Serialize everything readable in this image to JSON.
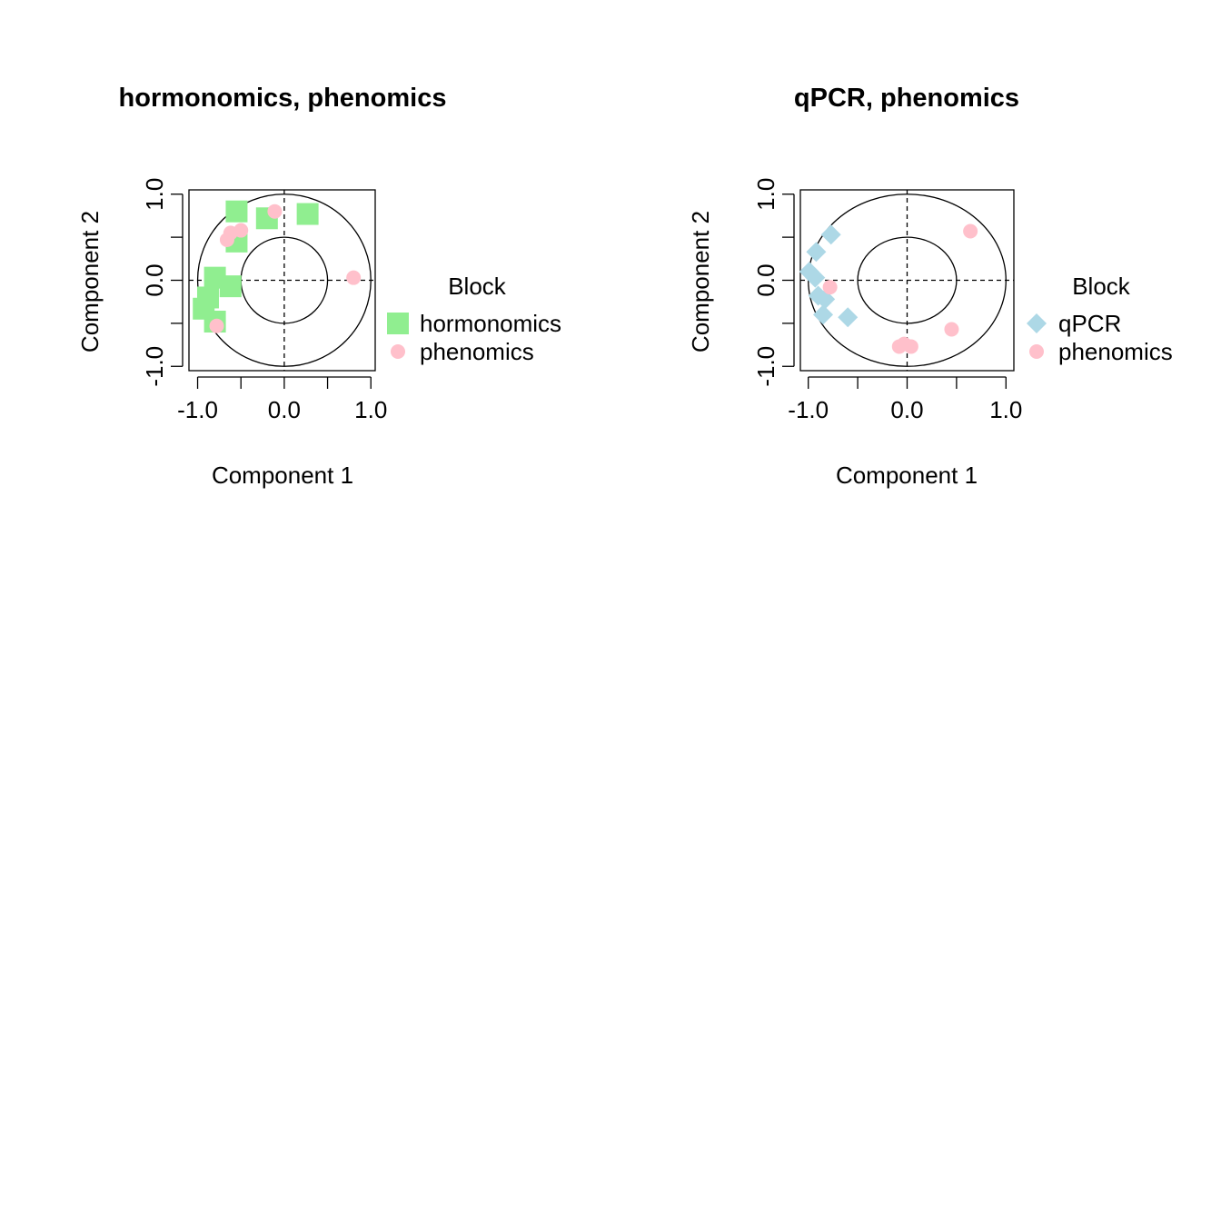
{
  "chart_data": [
    {
      "type": "scatter",
      "title": "hormonomics, phenomics",
      "xlabel": "Component  1",
      "ylabel": "Component  2",
      "xticks": [
        "-1.0",
        "0.0",
        "1.0"
      ],
      "yticks": [
        "-1.0",
        "0.0",
        "1.0"
      ],
      "xlim": [
        -1.1,
        1.05
      ],
      "ylim": [
        -1.05,
        1.05
      ],
      "circles": [
        0.5,
        1.0
      ],
      "legend": {
        "title": "Block",
        "placement": "right"
      },
      "series": [
        {
          "name": "hormonomics",
          "color": "#90EE90",
          "marker": "square",
          "points": [
            [
              -0.55,
              0.8
            ],
            [
              -0.2,
              0.72
            ],
            [
              0.27,
              0.77
            ],
            [
              -0.55,
              0.45
            ],
            [
              -0.8,
              0.03
            ],
            [
              -0.62,
              -0.07
            ],
            [
              -0.88,
              -0.2
            ],
            [
              -0.93,
              -0.33
            ],
            [
              -0.8,
              -0.48
            ]
          ]
        },
        {
          "name": "phenomics",
          "color": "#FFC0CB",
          "marker": "circle",
          "points": [
            [
              -0.11,
              0.8
            ],
            [
              -0.5,
              0.58
            ],
            [
              -0.62,
              0.55
            ],
            [
              -0.66,
              0.47
            ],
            [
              0.8,
              0.03
            ],
            [
              -0.78,
              -0.53
            ]
          ]
        }
      ]
    },
    {
      "type": "scatter",
      "title": "qPCR, phenomics",
      "xlabel": "Component  1",
      "ylabel": "Component  2",
      "xticks": [
        "-1.0",
        "0.0",
        "1.0"
      ],
      "yticks": [
        "-1.0",
        "0.0",
        "1.0"
      ],
      "xlim": [
        -1.08,
        1.08
      ],
      "ylim": [
        -1.05,
        1.05
      ],
      "circles": [
        0.5,
        1.0
      ],
      "legend": {
        "title": "Block",
        "placement": "right"
      },
      "series": [
        {
          "name": "qPCR",
          "color": "#ADD8E6",
          "marker": "diamond",
          "points": [
            [
              -0.77,
              0.53
            ],
            [
              -0.92,
              0.33
            ],
            [
              -0.99,
              0.1
            ],
            [
              -0.93,
              0.03
            ],
            [
              -0.9,
              -0.18
            ],
            [
              -0.83,
              -0.22
            ],
            [
              -0.85,
              -0.4
            ],
            [
              -0.6,
              -0.43
            ]
          ]
        },
        {
          "name": "phenomics",
          "color": "#FFC0CB",
          "marker": "circle",
          "points": [
            [
              0.64,
              0.57
            ],
            [
              -0.78,
              -0.08
            ],
            [
              0.45,
              -0.57
            ],
            [
              -0.08,
              -0.77
            ],
            [
              -0.03,
              -0.74
            ],
            [
              0.04,
              -0.77
            ]
          ]
        }
      ]
    }
  ]
}
